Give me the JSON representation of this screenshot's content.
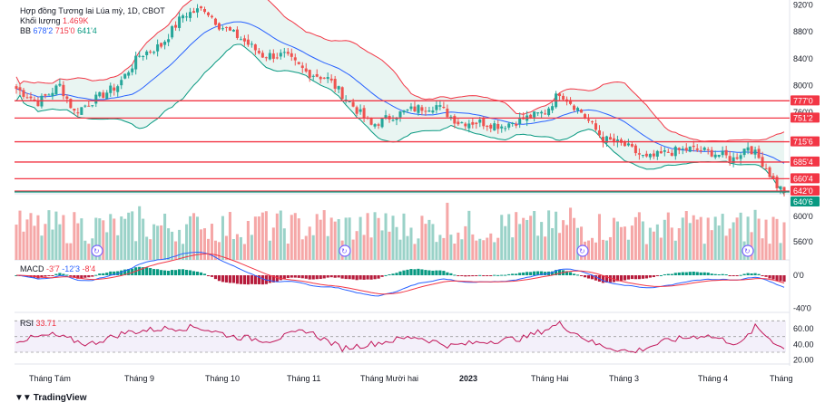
{
  "header": {
    "title": "Hợp đồng Tương lai Lúa mỳ, 1D, CBOT",
    "volume_label": "Khối lượng",
    "volume_value": "1.469K",
    "bb_label": "BB",
    "bb_mid": "678'2",
    "bb_upper": "715'0",
    "bb_lower": "641'4",
    "macd_label": "MACD",
    "macd_val": "-3'7",
    "macd_signal": "-12'3",
    "macd_hist": "-8'4",
    "rsi_label": "RSI",
    "rsi_value": "33.71"
  },
  "branding": {
    "logo_text": "TradingView"
  },
  "colors": {
    "up": "#26a69a",
    "down": "#ef5350",
    "level_line": "#f23645",
    "level_green": "#089981",
    "bb_mid": "#2962ff",
    "bb_fill": "#e3f2ef"
  },
  "chart_data": [
    {
      "type": "candlestick",
      "title": "Hợp đồng Tương lai Lúa mỳ, 1D, CBOT",
      "y_ticks": [
        "920'0",
        "880'0",
        "840'0",
        "800'0",
        "760'0",
        "600'0",
        "560'0"
      ],
      "x_ticks": [
        "Tháng Tám",
        "Tháng 9",
        "Tháng 10",
        "Tháng 11",
        "Tháng Mười hai",
        "2023",
        "Tháng Hai",
        "Tháng 3",
        "Tháng 4",
        "Tháng"
      ],
      "ylim": [
        638,
        925
      ],
      "horizontal_levels": [
        {
          "label": "777'0",
          "value": 777,
          "color": "#f23645"
        },
        {
          "label": "751'2",
          "value": 751.25,
          "color": "#f23645"
        },
        {
          "label": "715'6",
          "value": 715.75,
          "color": "#f23645"
        },
        {
          "label": "685'4",
          "value": 685.5,
          "color": "#f23645"
        },
        {
          "label": "660'4",
          "value": 660.5,
          "color": "#f23645"
        },
        {
          "label": "642'0",
          "value": 642,
          "color": "#f23645"
        },
        {
          "label": "640'6",
          "value": 640.75,
          "color": "#089981"
        }
      ],
      "close_anchors": [
        {
          "i": 0,
          "v": 795
        },
        {
          "i": 6,
          "v": 775
        },
        {
          "i": 12,
          "v": 800
        },
        {
          "i": 16,
          "v": 760
        },
        {
          "i": 22,
          "v": 780
        },
        {
          "i": 28,
          "v": 800
        },
        {
          "i": 34,
          "v": 845
        },
        {
          "i": 40,
          "v": 860
        },
        {
          "i": 46,
          "v": 905
        },
        {
          "i": 52,
          "v": 915
        },
        {
          "i": 56,
          "v": 890
        },
        {
          "i": 62,
          "v": 870
        },
        {
          "i": 68,
          "v": 845
        },
        {
          "i": 74,
          "v": 845
        },
        {
          "i": 80,
          "v": 820
        },
        {
          "i": 86,
          "v": 810
        },
        {
          "i": 92,
          "v": 775
        },
        {
          "i": 98,
          "v": 740
        },
        {
          "i": 104,
          "v": 755
        },
        {
          "i": 110,
          "v": 765
        },
        {
          "i": 116,
          "v": 770
        },
        {
          "i": 122,
          "v": 745
        },
        {
          "i": 128,
          "v": 745
        },
        {
          "i": 134,
          "v": 740
        },
        {
          "i": 140,
          "v": 750
        },
        {
          "i": 146,
          "v": 760
        },
        {
          "i": 150,
          "v": 790
        },
        {
          "i": 156,
          "v": 760
        },
        {
          "i": 162,
          "v": 720
        },
        {
          "i": 168,
          "v": 710
        },
        {
          "i": 174,
          "v": 690
        },
        {
          "i": 180,
          "v": 700
        },
        {
          "i": 186,
          "v": 705
        },
        {
          "i": 192,
          "v": 700
        },
        {
          "i": 198,
          "v": 690
        },
        {
          "i": 202,
          "v": 710
        },
        {
          "i": 206,
          "v": 685
        },
        {
          "i": 210,
          "v": 650
        },
        {
          "i": 212,
          "v": 642
        }
      ]
    },
    {
      "type": "bar",
      "title": "Khối lượng",
      "y_ticks": [
        "600'0",
        "560'0"
      ],
      "latest": "1.469K"
    },
    {
      "type": "line",
      "title": "MACD",
      "y_ticks": [
        "0'0",
        "-40'0"
      ],
      "series": [
        {
          "name": "MACD",
          "latest": "-3'7"
        },
        {
          "name": "Signal",
          "latest": "-12'3"
        },
        {
          "name": "Histogram",
          "latest": "-8'4"
        }
      ]
    },
    {
      "type": "line",
      "title": "RSI",
      "y_ticks": [
        "60.00",
        "40.00",
        "20.00"
      ],
      "ylim": [
        15,
        75
      ],
      "latest": 33.71,
      "rsi_anchors": [
        {
          "i": 0,
          "v": 45
        },
        {
          "i": 10,
          "v": 52
        },
        {
          "i": 20,
          "v": 40
        },
        {
          "i": 30,
          "v": 55
        },
        {
          "i": 40,
          "v": 60
        },
        {
          "i": 50,
          "v": 62
        },
        {
          "i": 60,
          "v": 50
        },
        {
          "i": 70,
          "v": 45
        },
        {
          "i": 80,
          "v": 58
        },
        {
          "i": 90,
          "v": 35
        },
        {
          "i": 100,
          "v": 42
        },
        {
          "i": 110,
          "v": 50
        },
        {
          "i": 120,
          "v": 38
        },
        {
          "i": 130,
          "v": 44
        },
        {
          "i": 140,
          "v": 48
        },
        {
          "i": 150,
          "v": 66
        },
        {
          "i": 160,
          "v": 40
        },
        {
          "i": 170,
          "v": 30
        },
        {
          "i": 180,
          "v": 45
        },
        {
          "i": 190,
          "v": 52
        },
        {
          "i": 200,
          "v": 40
        },
        {
          "i": 204,
          "v": 62
        },
        {
          "i": 212,
          "v": 33.71
        }
      ]
    }
  ]
}
